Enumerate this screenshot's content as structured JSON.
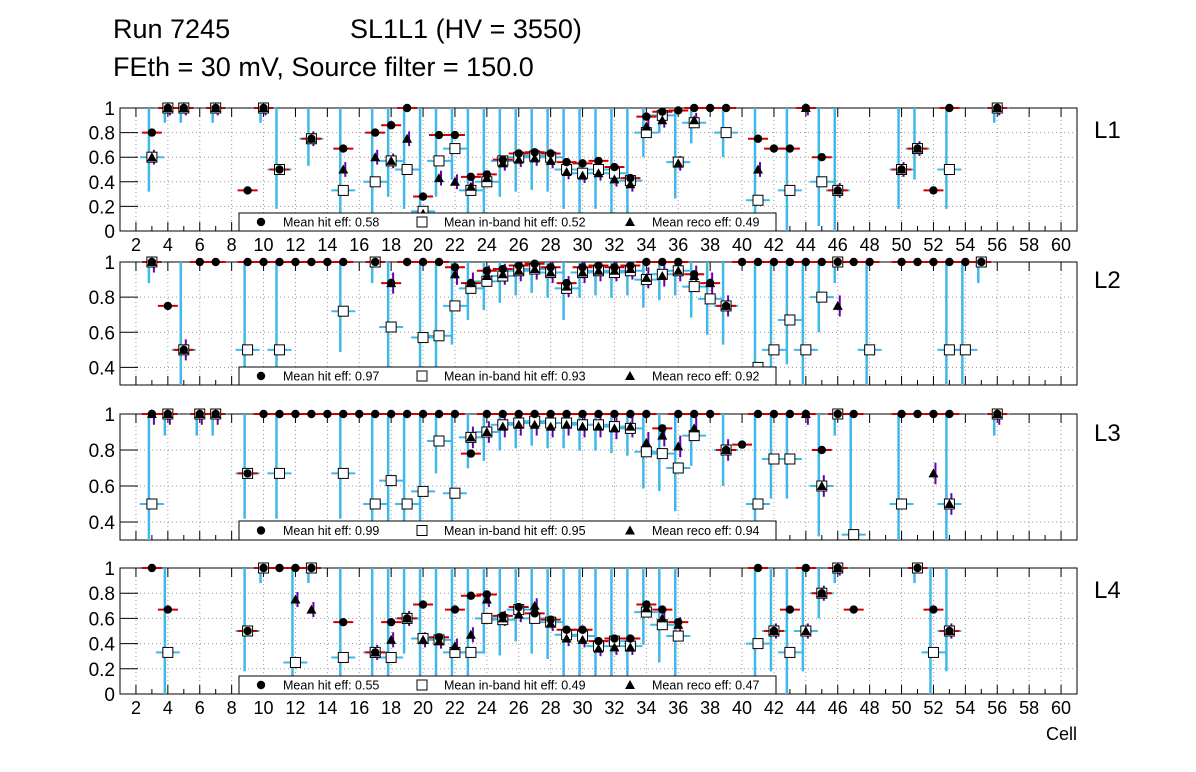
{
  "header": {
    "run": "Run 7245",
    "chamber": "SL1L1 (HV = 3550)",
    "settings": "FEth = 30 mV, Source filter = 150.0"
  },
  "x_axis_label": "Cell",
  "colors": {
    "hit": "#000000",
    "hit_err": "#cc0000",
    "inband_err": "#3fb8ea",
    "reco_err": "#6600aa",
    "grid": "#999999"
  },
  "chart_data": [
    {
      "type": "scatter",
      "layer": "L1",
      "ylim": [
        0,
        1
      ],
      "yticks": [
        "0",
        "0.2",
        "0.4",
        "0.6",
        "0.8",
        "1"
      ],
      "xlim": [
        1,
        61
      ],
      "xticks": [
        "2",
        "4",
        "6",
        "8",
        "10",
        "12",
        "14",
        "16",
        "18",
        "20",
        "22",
        "24",
        "26",
        "28",
        "30",
        "32",
        "34",
        "36",
        "38",
        "40",
        "42",
        "44",
        "46",
        "48",
        "50",
        "52",
        "54",
        "56",
        "58",
        "60"
      ],
      "legend": {
        "hit": "Mean hit  eff: 0.58",
        "inband": "Mean in-band hit eff: 0.52",
        "reco": "Mean reco eff: 0.49"
      },
      "series": [
        {
          "name": "hit",
          "x": [
            3,
            4,
            5,
            7,
            9,
            10,
            11,
            13,
            15,
            17,
            18,
            19,
            20,
            21,
            22,
            23,
            24,
            25,
            26,
            27,
            28,
            29,
            30,
            31,
            32,
            33,
            34,
            35,
            36,
            37,
            38,
            39,
            41,
            42,
            43,
            44,
            45,
            46,
            50,
            51,
            52,
            53,
            56
          ],
          "y": [
            0.8,
            1,
            1,
            1,
            0.33,
            1,
            0.5,
            0.75,
            0.67,
            0.8,
            0.86,
            1,
            0.28,
            0.78,
            0.78,
            0.44,
            0.46,
            0.58,
            0.63,
            0.64,
            0.63,
            0.56,
            0.55,
            0.57,
            0.52,
            0.43,
            0.93,
            0.97,
            0.98,
            1,
            1,
            1,
            0.75,
            0.67,
            0.67,
            1,
            0.6,
            0.33,
            0.5,
            0.67,
            0.33,
            1,
            1
          ]
        },
        {
          "name": "inband",
          "x": [
            3,
            4,
            5,
            7,
            10,
            11,
            13,
            15,
            17,
            18,
            19,
            20,
            21,
            22,
            23,
            24,
            25,
            26,
            27,
            28,
            29,
            30,
            31,
            32,
            33,
            34,
            35,
            36,
            37,
            39,
            41,
            43,
            45,
            46,
            50,
            51,
            53,
            56
          ],
          "y": [
            0.6,
            1,
            1,
            1,
            1,
            0.5,
            0.75,
            0.33,
            0.4,
            0.57,
            0.5,
            0.16,
            0.57,
            0.67,
            0.33,
            0.4,
            0.57,
            0.6,
            0.61,
            0.6,
            0.5,
            0.47,
            0.5,
            0.47,
            0.41,
            0.8,
            0.94,
            0.56,
            0.88,
            0.8,
            0.25,
            0.33,
            0.4,
            0.33,
            0.5,
            0.67,
            0.5,
            1
          ]
        },
        {
          "name": "reco",
          "x": [
            3,
            4,
            5,
            7,
            10,
            13,
            15,
            17,
            18,
            19,
            20,
            21,
            22,
            23,
            24,
            25,
            26,
            27,
            28,
            29,
            30,
            31,
            32,
            33,
            34,
            35,
            36,
            37,
            41,
            44,
            46,
            50,
            51,
            56
          ],
          "y": [
            0.6,
            1,
            1,
            1,
            1,
            0.75,
            0.5,
            0.6,
            0.57,
            0.75,
            0.14,
            0.43,
            0.4,
            0.36,
            0.43,
            0.55,
            0.58,
            0.59,
            0.57,
            0.48,
            0.45,
            0.47,
            0.42,
            0.38,
            0.85,
            0.9,
            0.55,
            0.9,
            0.5,
            1,
            0.33,
            0.5,
            0.67,
            1
          ]
        }
      ]
    },
    {
      "type": "scatter",
      "layer": "L2",
      "ylim": [
        0.3,
        1
      ],
      "yticks": [
        "0.4",
        "0.6",
        "0.8",
        "1"
      ],
      "xlim": [
        1,
        61
      ],
      "xticks": [],
      "legend": {
        "hit": "Mean hit  eff: 0.97",
        "inband": "Mean in-band hit eff: 0.93",
        "reco": "Mean reco eff: 0.92"
      },
      "series": [
        {
          "name": "hit",
          "x": [
            3,
            4,
            5,
            6,
            7,
            9,
            10,
            11,
            12,
            13,
            14,
            15,
            17,
            18,
            19,
            20,
            21,
            22,
            23,
            24,
            25,
            26,
            27,
            28,
            29,
            30,
            31,
            32,
            33,
            34,
            35,
            36,
            37,
            38,
            39,
            40,
            41,
            42,
            43,
            44,
            45,
            46,
            47,
            48,
            50,
            51,
            52,
            53,
            54,
            55
          ],
          "y": [
            1,
            0.75,
            0.5,
            1,
            1,
            1,
            1,
            1,
            1,
            1,
            1,
            1,
            1,
            0.88,
            1,
            1,
            1,
            0.97,
            0.88,
            0.95,
            0.96,
            0.98,
            0.99,
            0.97,
            0.88,
            0.97,
            0.98,
            0.97,
            0.98,
            1,
            1,
            1,
            0.93,
            0.88,
            0.75,
            1,
            1,
            1,
            1,
            1,
            1,
            1,
            1,
            1,
            1,
            1,
            1,
            1,
            1,
            1
          ]
        },
        {
          "name": "inband",
          "x": [
            3,
            5,
            9,
            11,
            15,
            17,
            18,
            20,
            21,
            22,
            23,
            24,
            25,
            26,
            27,
            28,
            29,
            30,
            31,
            32,
            33,
            34,
            35,
            36,
            37,
            38,
            39,
            41,
            42,
            43,
            44,
            45,
            46,
            48,
            53,
            54,
            55
          ],
          "y": [
            1,
            0.5,
            0.5,
            0.5,
            0.72,
            1,
            0.63,
            0.57,
            0.58,
            0.75,
            0.85,
            0.89,
            0.92,
            0.95,
            0.96,
            0.94,
            0.85,
            0.94,
            0.95,
            0.94,
            0.95,
            0.9,
            0.93,
            0.95,
            0.86,
            0.79,
            0.75,
            0.4,
            0.5,
            0.67,
            0.5,
            0.8,
            1,
            0.5,
            0.5,
            0.5,
            1
          ]
        },
        {
          "name": "reco",
          "x": [
            3,
            5,
            18,
            22,
            23,
            24,
            25,
            26,
            27,
            28,
            29,
            30,
            31,
            32,
            33,
            34,
            35,
            36,
            37,
            38,
            39,
            46
          ],
          "y": [
            1,
            0.5,
            0.88,
            0.93,
            0.88,
            0.92,
            0.93,
            0.95,
            0.96,
            0.94,
            0.86,
            0.94,
            0.95,
            0.95,
            0.96,
            0.91,
            0.92,
            0.95,
            0.92,
            0.88,
            0.75,
            0.75
          ]
        }
      ]
    },
    {
      "type": "scatter",
      "layer": "L3",
      "ylim": [
        0.3,
        1
      ],
      "yticks": [
        "0.4",
        "0.6",
        "0.8",
        "1"
      ],
      "xlim": [
        1,
        61
      ],
      "xticks": [],
      "legend": {
        "hit": "Mean hit  eff: 0.99",
        "inband": "Mean in-band hit eff: 0.95",
        "reco": "Mean reco eff: 0.94"
      },
      "series": [
        {
          "name": "hit",
          "x": [
            3,
            4,
            6,
            7,
            9,
            10,
            11,
            12,
            13,
            14,
            15,
            16,
            17,
            18,
            19,
            20,
            21,
            22,
            23,
            24,
            25,
            26,
            27,
            28,
            29,
            30,
            31,
            32,
            33,
            34,
            35,
            36,
            37,
            38,
            39,
            40,
            41,
            42,
            43,
            44,
            45,
            46,
            47,
            50,
            51,
            52,
            53,
            56
          ],
          "y": [
            1,
            1,
            1,
            1,
            0.67,
            1,
            1,
            1,
            1,
            1,
            1,
            1,
            1,
            1,
            1,
            1,
            1,
            1,
            0.78,
            1,
            1,
            1,
            1,
            1,
            1,
            1,
            1,
            1,
            1,
            1,
            0.92,
            1,
            1,
            1,
            0.8,
            0.83,
            1,
            1,
            1,
            1,
            0.8,
            1,
            1,
            1,
            1,
            1,
            1,
            1
          ]
        },
        {
          "name": "inband",
          "x": [
            3,
            4,
            6,
            7,
            9,
            11,
            15,
            17,
            18,
            19,
            20,
            21,
            22,
            23,
            24,
            25,
            26,
            27,
            28,
            29,
            30,
            31,
            32,
            33,
            34,
            35,
            36,
            37,
            39,
            41,
            42,
            43,
            45,
            46,
            47,
            50,
            53,
            56
          ],
          "y": [
            0.5,
            1,
            1,
            1,
            0.67,
            0.67,
            0.67,
            0.5,
            0.63,
            0.5,
            0.57,
            0.85,
            0.56,
            0.87,
            0.9,
            0.94,
            0.95,
            0.96,
            0.95,
            0.95,
            0.94,
            0.94,
            0.93,
            0.92,
            0.79,
            0.78,
            0.7,
            0.88,
            0.8,
            0.5,
            0.75,
            0.75,
            0.6,
            1,
            0.33,
            0.5,
            0.5,
            1
          ]
        },
        {
          "name": "reco",
          "x": [
            3,
            4,
            6,
            7,
            23,
            24,
            25,
            26,
            27,
            28,
            29,
            30,
            31,
            32,
            33,
            34,
            35,
            36,
            37,
            39,
            44,
            45,
            52,
            53,
            56
          ],
          "y": [
            1,
            1,
            1,
            1,
            0.87,
            0.9,
            0.93,
            0.94,
            0.94,
            0.93,
            0.94,
            0.93,
            0.93,
            0.92,
            0.93,
            0.84,
            0.88,
            0.82,
            0.92,
            0.8,
            1,
            0.6,
            0.67,
            0.5,
            1
          ]
        }
      ]
    },
    {
      "type": "scatter",
      "layer": "L4",
      "ylim": [
        0,
        1
      ],
      "yticks": [
        "0",
        "0.2",
        "0.4",
        "0.6",
        "0.8",
        "1"
      ],
      "xlim": [
        1,
        61
      ],
      "xticks": [
        "2",
        "4",
        "6",
        "8",
        "10",
        "12",
        "14",
        "16",
        "18",
        "20",
        "22",
        "24",
        "26",
        "28",
        "30",
        "32",
        "34",
        "36",
        "38",
        "40",
        "42",
        "44",
        "46",
        "48",
        "50",
        "52",
        "54",
        "56",
        "58",
        "60"
      ],
      "legend": {
        "hit": "Mean hit  eff: 0.55",
        "inband": "Mean in-band hit eff: 0.49",
        "reco": "Mean reco eff: 0.47"
      },
      "series": [
        {
          "name": "hit",
          "x": [
            3,
            4,
            9,
            10,
            11,
            12,
            13,
            15,
            17,
            18,
            19,
            20,
            21,
            22,
            23,
            24,
            25,
            26,
            27,
            28,
            29,
            30,
            31,
            32,
            33,
            34,
            35,
            36,
            41,
            42,
            43,
            44,
            45,
            46,
            47,
            51,
            52,
            53
          ],
          "y": [
            1,
            0.67,
            0.5,
            1,
            1,
            1,
            1,
            0.57,
            0.33,
            0.57,
            0.6,
            0.71,
            0.45,
            0.67,
            0.78,
            0.79,
            0.62,
            0.69,
            0.64,
            0.59,
            0.51,
            0.51,
            0.42,
            0.44,
            0.44,
            0.71,
            0.67,
            0.57,
            1,
            0.5,
            0.67,
            1,
            0.8,
            1,
            0.67,
            1,
            0.67,
            0.5
          ]
        },
        {
          "name": "inband",
          "x": [
            4,
            9,
            10,
            12,
            13,
            15,
            17,
            18,
            19,
            20,
            21,
            22,
            23,
            24,
            25,
            26,
            27,
            28,
            29,
            30,
            31,
            32,
            33,
            34,
            35,
            36,
            41,
            42,
            43,
            44,
            45,
            46,
            51,
            52,
            53
          ],
          "y": [
            0.33,
            0.5,
            1,
            0.25,
            1,
            0.29,
            0.33,
            0.29,
            0.6,
            0.44,
            0.43,
            0.33,
            0.33,
            0.6,
            0.59,
            0.67,
            0.6,
            0.57,
            0.47,
            0.46,
            0.38,
            0.42,
            0.38,
            0.65,
            0.55,
            0.46,
            0.4,
            0.5,
            0.33,
            0.5,
            0.8,
            1,
            1,
            0.33,
            0.5
          ]
        },
        {
          "name": "reco",
          "x": [
            12,
            13,
            17,
            18,
            19,
            20,
            21,
            22,
            23,
            24,
            25,
            26,
            27,
            28,
            29,
            30,
            31,
            32,
            33,
            34,
            35,
            36,
            42,
            44,
            45,
            46,
            53
          ],
          "y": [
            0.75,
            0.67,
            0.33,
            0.43,
            0.6,
            0.43,
            0.42,
            0.38,
            0.47,
            0.75,
            0.6,
            0.63,
            0.7,
            0.56,
            0.44,
            0.43,
            0.36,
            0.37,
            0.37,
            0.68,
            0.6,
            0.55,
            0.5,
            0.5,
            0.8,
            1,
            0.5
          ]
        }
      ]
    }
  ]
}
